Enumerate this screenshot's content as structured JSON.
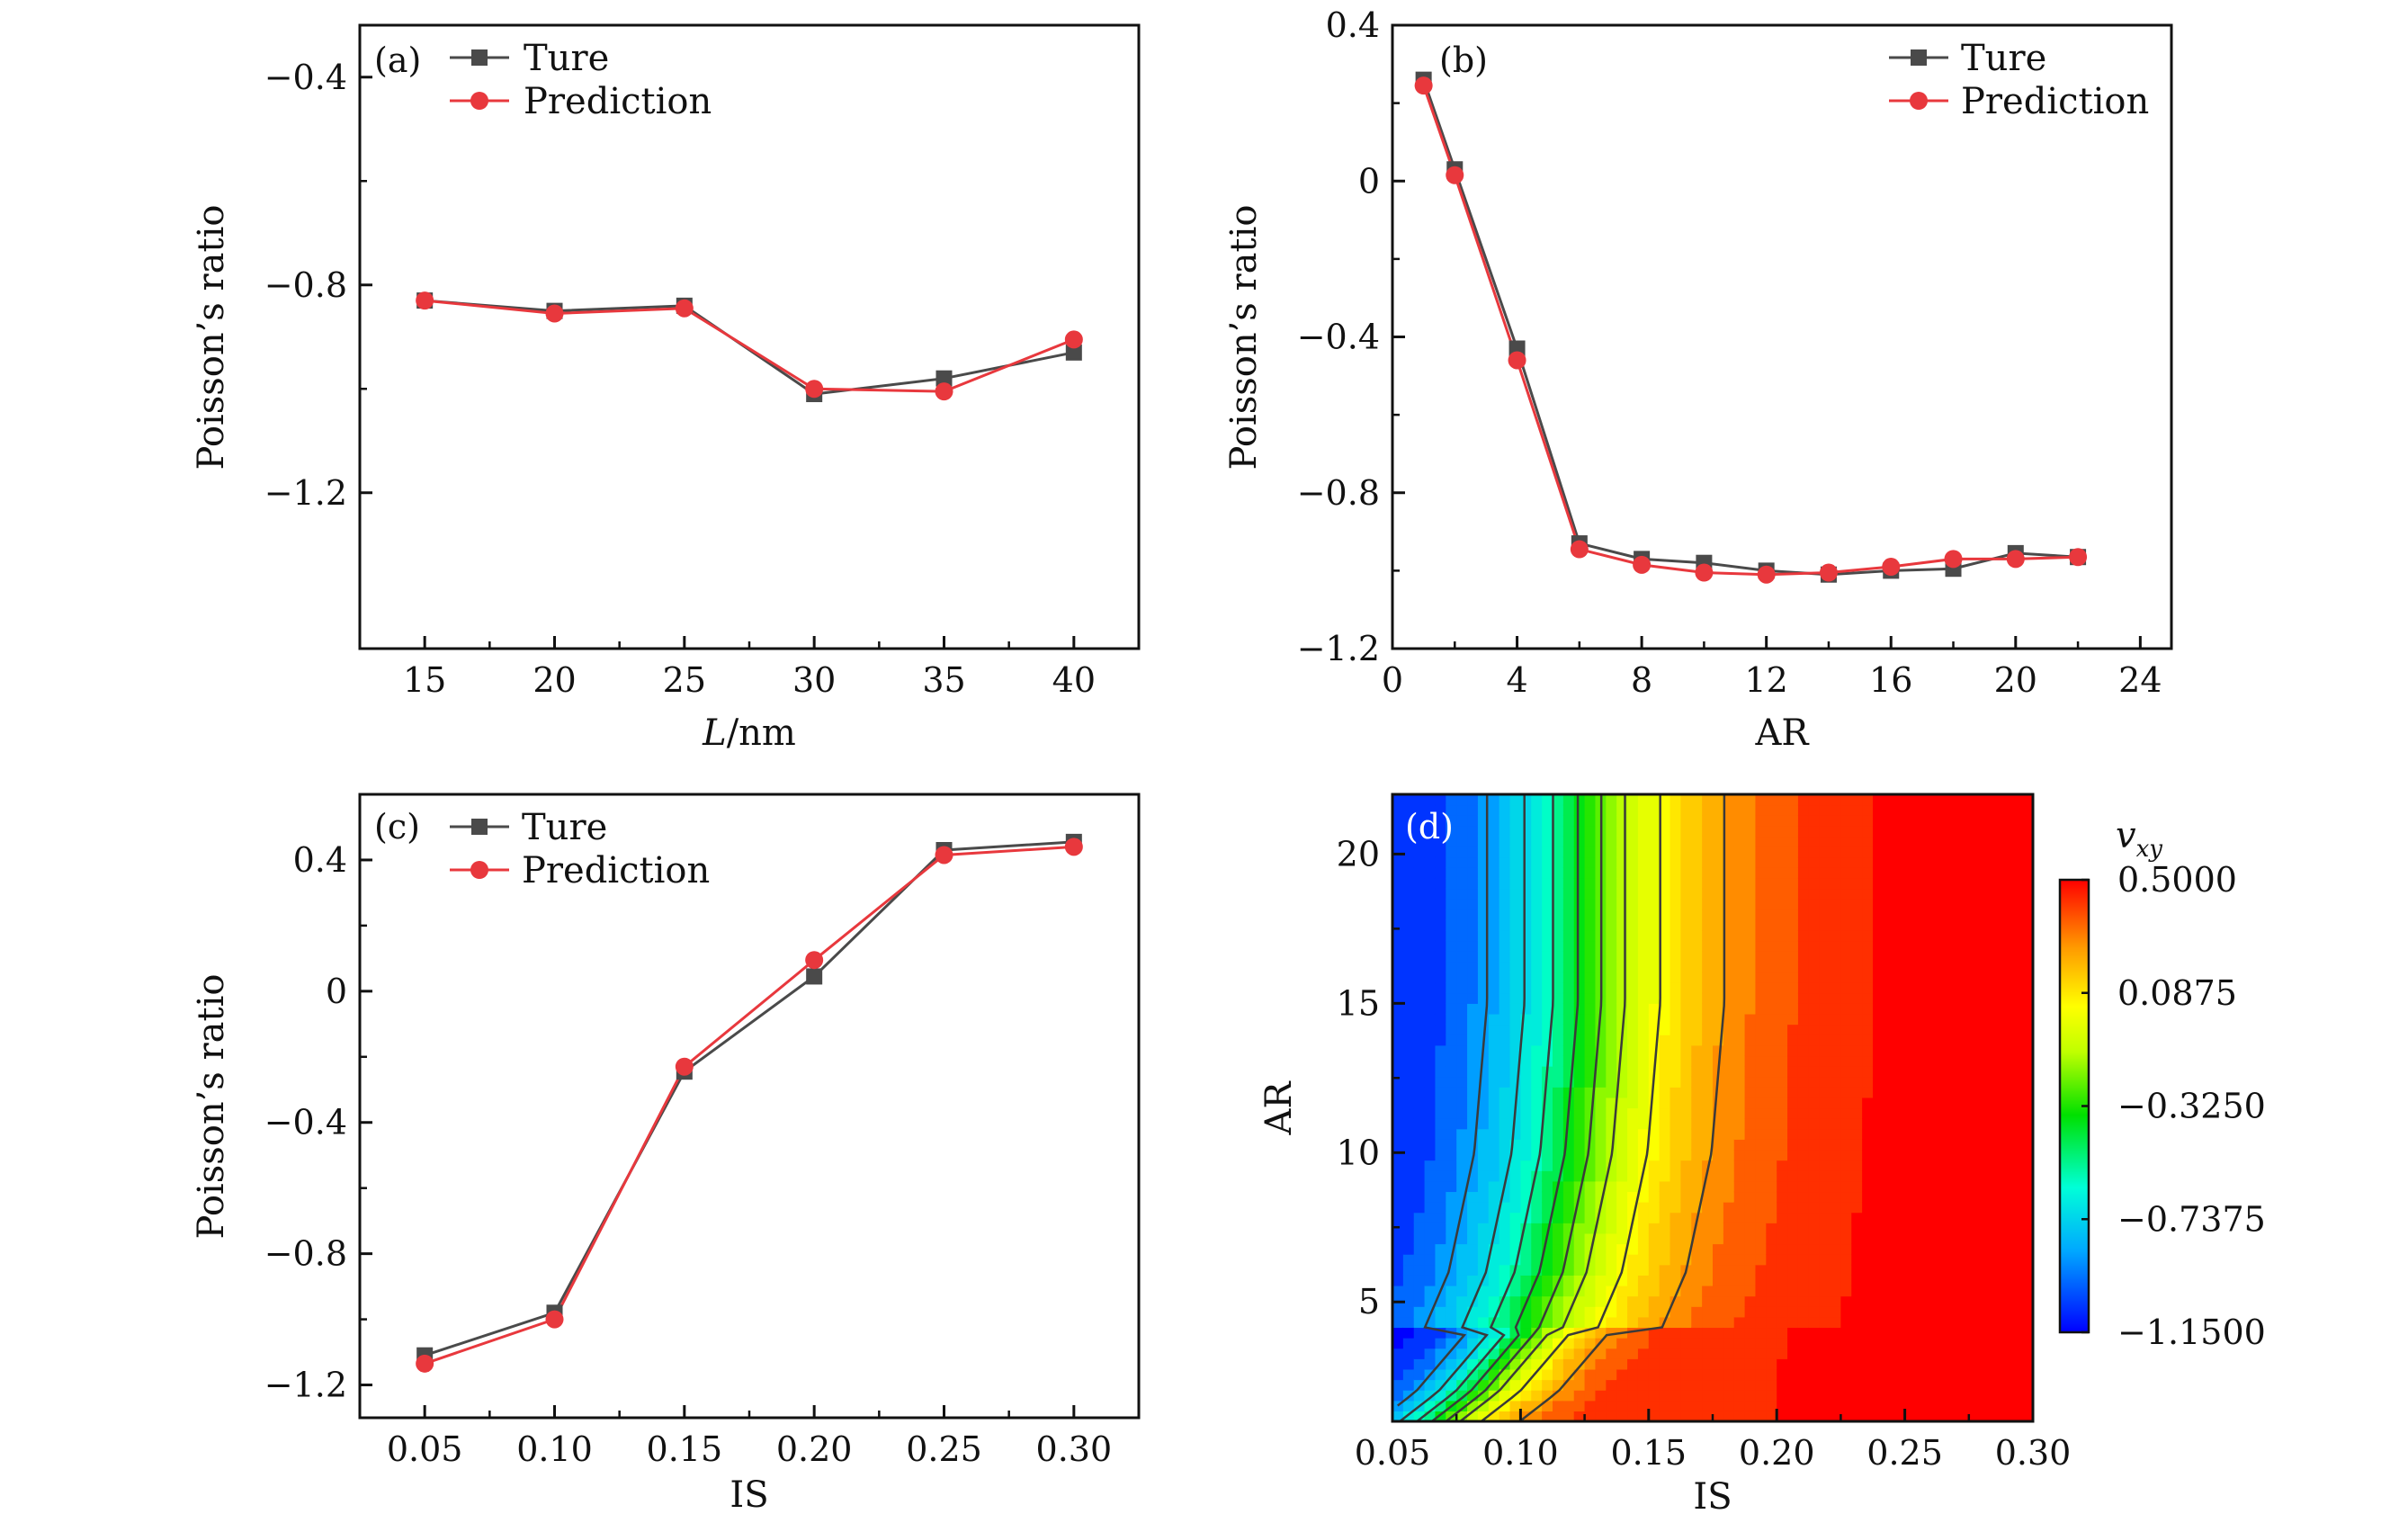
{
  "colors": {
    "true_series": "#4a4a4a",
    "prediction_series": "#e8383d",
    "axis": "#111111"
  },
  "chart_data": [
    {
      "type": "line",
      "panel_label": "(a)",
      "xlabel": "L/nm",
      "ylabel": "Poisson’s ratio",
      "xlim": [
        12.5,
        42.5
      ],
      "ylim": [
        -1.5,
        -0.3
      ],
      "x_ticks": [
        15,
        20,
        25,
        30,
        35,
        40
      ],
      "x_tick_labels": [
        "15",
        "20",
        "25",
        "30",
        "35",
        "40"
      ],
      "y_ticks": [
        -0.4,
        -0.8,
        -1.2
      ],
      "y_tick_labels": [
        "−0.4",
        "−0.8",
        "−1.2"
      ],
      "x": [
        15,
        20,
        25,
        30,
        35,
        40
      ],
      "series": [
        {
          "name": "Ture",
          "marker": "square",
          "values": [
            -0.83,
            -0.85,
            -0.84,
            -1.01,
            -0.98,
            -0.93
          ]
        },
        {
          "name": "Prediction",
          "marker": "circle",
          "values": [
            -0.83,
            -0.855,
            -0.845,
            -1.0,
            -1.005,
            -0.905
          ]
        }
      ],
      "legend": "top-left"
    },
    {
      "type": "line",
      "panel_label": "(b)",
      "xlabel": "AR",
      "ylabel": "Poisson’s ratio",
      "xlim": [
        0,
        25
      ],
      "ylim": [
        -1.2,
        0.4
      ],
      "x_ticks": [
        0,
        4,
        8,
        12,
        16,
        20,
        24
      ],
      "x_tick_labels": [
        "0",
        "4",
        "8",
        "12",
        "16",
        "20",
        "24"
      ],
      "y_ticks": [
        0.4,
        0,
        -0.4,
        -0.8,
        -1.2
      ],
      "y_tick_labels": [
        "0.4",
        "0",
        "−0.4",
        "−0.8",
        "−1.2"
      ],
      "x": [
        1,
        2,
        4,
        6,
        8,
        10,
        12,
        14,
        16,
        18,
        20,
        22
      ],
      "series": [
        {
          "name": "Ture",
          "marker": "square",
          "values": [
            0.26,
            0.03,
            -0.43,
            -0.93,
            -0.97,
            -0.98,
            -1.0,
            -1.01,
            -1.0,
            -0.995,
            -0.955,
            -0.965
          ]
        },
        {
          "name": "Prediction",
          "marker": "circle",
          "values": [
            0.245,
            0.015,
            -0.46,
            -0.945,
            -0.985,
            -1.005,
            -1.01,
            -1.005,
            -0.99,
            -0.97,
            -0.97,
            -0.965
          ]
        }
      ],
      "legend": "top-right"
    },
    {
      "type": "line",
      "panel_label": "(c)",
      "xlabel": "IS",
      "ylabel": "Poisson’s ratio",
      "xlim": [
        0.025,
        0.325
      ],
      "ylim": [
        -1.3,
        0.6
      ],
      "x_ticks": [
        0.05,
        0.1,
        0.15,
        0.2,
        0.25,
        0.3
      ],
      "x_tick_labels": [
        "0.05",
        "0.10",
        "0.15",
        "0.20",
        "0.25",
        "0.30"
      ],
      "y_ticks": [
        0.4,
        0,
        -0.4,
        -0.8,
        -1.2
      ],
      "y_tick_labels": [
        "0.4",
        "0",
        "−0.4",
        "−0.8",
        "−1.2"
      ],
      "x": [
        0.05,
        0.1,
        0.15,
        0.2,
        0.25,
        0.3
      ],
      "series": [
        {
          "name": "Ture",
          "marker": "square",
          "values": [
            -1.11,
            -0.98,
            -0.245,
            0.045,
            0.43,
            0.455
          ]
        },
        {
          "name": "Prediction",
          "marker": "circle",
          "values": [
            -1.135,
            -1.0,
            -0.23,
            0.095,
            0.415,
            0.44
          ]
        }
      ],
      "legend": "top-left"
    },
    {
      "type": "heatmap",
      "panel_label": "(d)",
      "xlabel": "IS",
      "ylabel": "AR",
      "xlim": [
        0.05,
        0.3
      ],
      "ylim": [
        1,
        22
      ],
      "x_ticks": [
        0.05,
        0.1,
        0.15,
        0.2,
        0.25,
        0.3
      ],
      "x_tick_labels": [
        "0.05",
        "0.10",
        "0.15",
        "0.20",
        "0.25",
        "0.30"
      ],
      "y_ticks": [
        5,
        10,
        15,
        20
      ],
      "y_tick_labels": [
        "5",
        "10",
        "15",
        "20"
      ],
      "colorbar": {
        "title": "v_xy",
        "range": [
          -1.15,
          0.5
        ],
        "tick_values": [
          0.5,
          0.0875,
          -0.325,
          -0.7375,
          -1.15
        ],
        "tick_labels": [
          "0.5000",
          "0.0875",
          "−0.3250",
          "−0.7375",
          "−1.1500"
        ],
        "colormap": [
          "#0000ff",
          "#00b4ff",
          "#00ffd0",
          "#00e000",
          "#b4ff00",
          "#ffff00",
          "#ffa000",
          "#ff0000"
        ]
      },
      "contour_levels": [
        -0.9,
        -0.75,
        -0.6,
        -0.45,
        -0.3,
        -0.15,
        0.05,
        0.3
      ],
      "model": {
        "vmin_curve_ar": [
          1,
          2,
          3,
          4,
          6,
          8,
          10,
          15,
          22
        ],
        "vmin_curve_is": [
          0.07,
          0.085,
          0.095,
          0.105,
          0.115,
          0.12,
          0.125,
          0.13,
          0.13
        ],
        "transition_width_is": 0.06,
        "plateau_value_high_is": 0.5
      }
    }
  ]
}
